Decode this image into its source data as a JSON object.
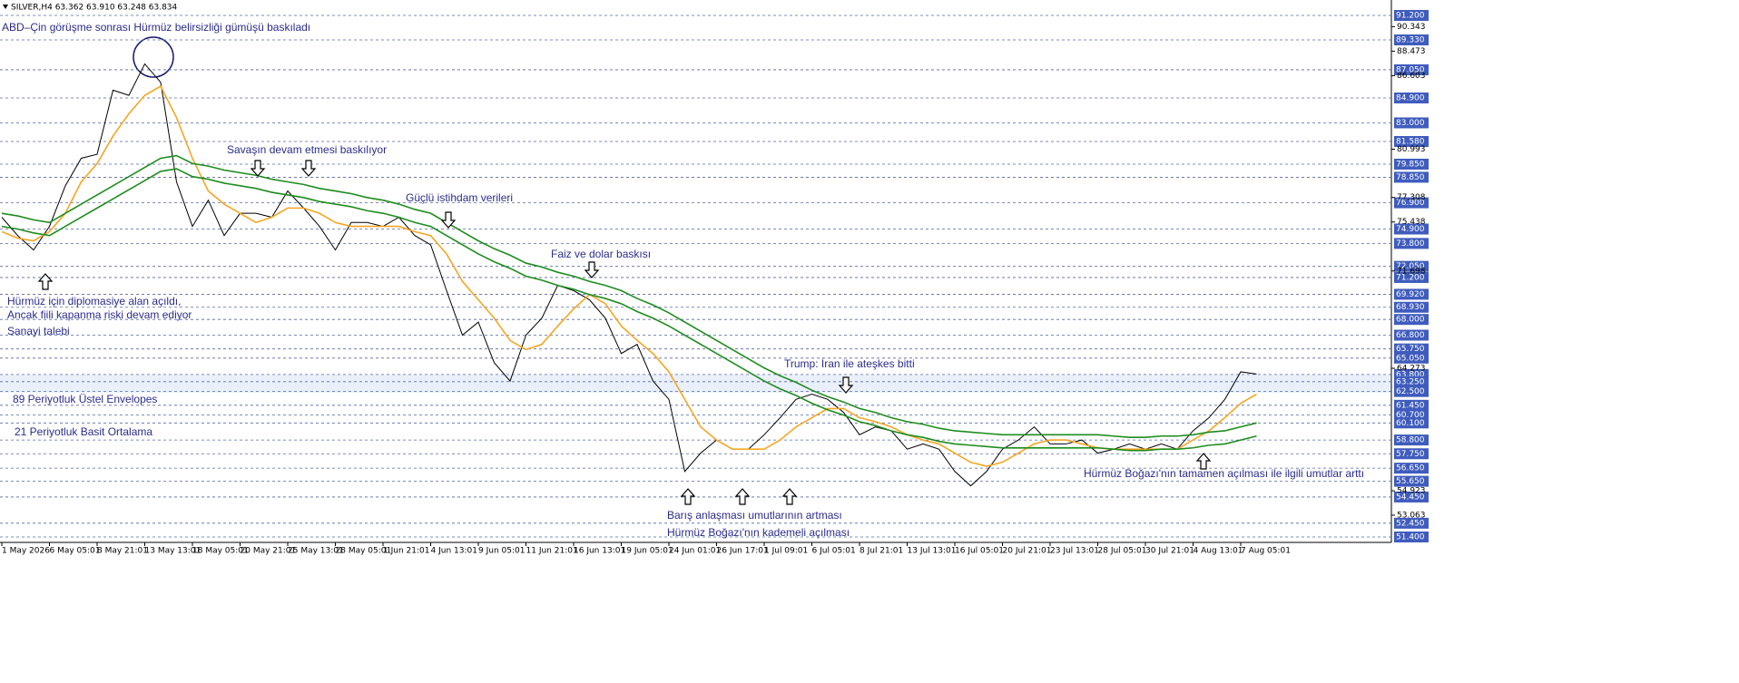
{
  "header": "SILVER,H4  63.362 63.910 63.248 63.834",
  "chart_data": {
    "type": "line",
    "categories": [
      "1 May 2026",
      null,
      null,
      "6 May 05:01",
      null,
      null,
      "8 May 21:01",
      null,
      null,
      "13 May 13:01",
      null,
      null,
      "18 May 05:01",
      null,
      null,
      "20 May 21:01",
      null,
      null,
      "25 May 13:01",
      null,
      null,
      "28 May 05:01",
      null,
      null,
      "1 Jun 21:01",
      null,
      null,
      "4 Jun 13:01",
      null,
      null,
      "9 Jun 05:01",
      null,
      null,
      "11 Jun 21:01",
      null,
      null,
      "16 Jun 13:01",
      null,
      null,
      "19 Jun 05:01",
      null,
      null,
      "24 Jun 01:01",
      null,
      null,
      "26 Jun 17:01",
      null,
      null,
      "1 Jul 09:01",
      null,
      null,
      "6 Jul 05:01",
      null,
      null,
      "8 Jul 21:01",
      null,
      null,
      "13 Jul 13:01",
      null,
      null,
      "16 Jul 05:01",
      null,
      null,
      "20 Jul 21:01",
      null,
      null,
      "23 Jul 13:01",
      null,
      null,
      "28 Jul 05:01",
      null,
      null,
      "30 Jul 21:01",
      null,
      null,
      "4 Aug 13:01",
      null,
      null,
      "7 Aug 05:01",
      null
    ],
    "series": [
      {
        "color": "#000000",
        "values": [
          75.8,
          74.4,
          73.3,
          75.1,
          78.2,
          80.3,
          80.6,
          85.5,
          85.1,
          87.5,
          86.1,
          78.5,
          75.1,
          77.1,
          74.4,
          76.1,
          76.1,
          75.8,
          77.8,
          76.5,
          75.1,
          73.3,
          75.4,
          75.4,
          75.1,
          75.8,
          74.4,
          73.7,
          70.2,
          66.8,
          67.8,
          64.7,
          63.3,
          66.8,
          68.1,
          70.6,
          70.2,
          69.5,
          68.1,
          65.4,
          66.1,
          63.3,
          61.9,
          56.4,
          57.8,
          58.8,
          58.1,
          58.1,
          59.2,
          60.5,
          61.9,
          62.3,
          61.9,
          60.9,
          59.2,
          59.8,
          59.5,
          58.1,
          58.5,
          58.1,
          56.4,
          55.3,
          56.4,
          58.1,
          58.8,
          59.8,
          58.5,
          58.5,
          58.8,
          57.8,
          58.1,
          58.5,
          58.1,
          58.5,
          58.1,
          59.5,
          60.5,
          61.9,
          64.0,
          63.834
        ]
      },
      {
        "color": "#f5a623",
        "values": [
          74.7,
          74.2,
          74.0,
          74.7,
          76.1,
          78.5,
          79.9,
          82.0,
          83.7,
          85.1,
          85.8,
          83.4,
          80.3,
          77.8,
          76.8,
          76.1,
          75.4,
          75.8,
          76.5,
          76.5,
          76.1,
          75.4,
          75.1,
          75.1,
          75.1,
          75.1,
          74.7,
          74.4,
          73.0,
          70.9,
          69.5,
          68.1,
          66.4,
          65.7,
          66.1,
          67.5,
          68.8,
          69.9,
          69.2,
          67.5,
          66.4,
          65.4,
          64.0,
          61.9,
          59.8,
          58.8,
          58.1,
          58.1,
          58.1,
          58.8,
          59.8,
          60.5,
          61.2,
          61.2,
          60.5,
          60.2,
          59.8,
          59.2,
          58.8,
          58.5,
          57.8,
          57.1,
          56.8,
          57.1,
          57.8,
          58.5,
          58.8,
          58.8,
          58.5,
          58.2,
          58.1,
          58.1,
          58.1,
          58.1,
          58.1,
          58.8,
          59.5,
          60.5,
          61.6,
          62.3
        ]
      },
      {
        "color": "#1e8c1e",
        "values": [
          76.1,
          75.9,
          75.6,
          75.4,
          76.1,
          76.8,
          77.5,
          78.2,
          78.9,
          79.6,
          80.3,
          80.5,
          79.9,
          79.7,
          79.4,
          79.2,
          79.0,
          78.7,
          78.5,
          78.3,
          78.0,
          77.8,
          77.6,
          77.3,
          77.1,
          76.8,
          76.4,
          76.1,
          75.4,
          74.7,
          74.0,
          73.4,
          72.9,
          72.3,
          72.0,
          71.6,
          71.3,
          70.9,
          70.6,
          70.2,
          69.6,
          69.1,
          68.5,
          67.8,
          67.1,
          66.4,
          65.7,
          65.0,
          64.3,
          63.7,
          63.2,
          62.6,
          62.1,
          61.7,
          61.2,
          60.9,
          60.5,
          60.2,
          60.0,
          59.7,
          59.5,
          59.4,
          59.3,
          59.2,
          59.2,
          59.2,
          59.2,
          59.2,
          59.2,
          59.2,
          59.1,
          59.0,
          59.0,
          59.1,
          59.1,
          59.2,
          59.4,
          59.5,
          59.8,
          60.1
        ]
      },
      {
        "color": "#1e8c1e",
        "values": [
          75.1,
          74.9,
          74.6,
          74.4,
          75.1,
          75.8,
          76.5,
          77.2,
          77.9,
          78.6,
          79.3,
          79.5,
          78.9,
          78.7,
          78.4,
          78.2,
          78.0,
          77.7,
          77.5,
          77.3,
          77.0,
          76.8,
          76.6,
          76.3,
          76.1,
          75.8,
          75.4,
          75.1,
          74.4,
          73.7,
          73.0,
          72.4,
          71.9,
          71.3,
          71.0,
          70.6,
          70.3,
          69.9,
          69.6,
          69.2,
          68.6,
          68.1,
          67.5,
          66.8,
          66.1,
          65.4,
          64.7,
          64.0,
          63.3,
          62.7,
          62.2,
          61.6,
          61.1,
          60.7,
          60.2,
          59.9,
          59.5,
          59.2,
          59.0,
          58.7,
          58.5,
          58.4,
          58.3,
          58.2,
          58.2,
          58.2,
          58.2,
          58.2,
          58.2,
          58.2,
          58.1,
          58.0,
          58.0,
          58.1,
          58.1,
          58.2,
          58.4,
          58.5,
          58.8,
          59.1
        ]
      }
    ],
    "ylim": [
      50.985,
      92.377
    ],
    "yticks": [
      90.343,
      88.473,
      86.603,
      80.993,
      77.308,
      75.438,
      71.698,
      64.273,
      54.923,
      53.063
    ],
    "levels": [
      {
        "value": 91.2,
        "label": "91.200"
      },
      {
        "value": 89.33,
        "label": "89.330"
      },
      {
        "value": 87.05,
        "label": "87.050"
      },
      {
        "value": 84.9,
        "label": "84.900"
      },
      {
        "value": 83.0,
        "label": "83.000"
      },
      {
        "value": 81.58,
        "label": "81.580"
      },
      {
        "value": 79.85,
        "label": "79.850"
      },
      {
        "value": 78.85,
        "label": "78.850"
      },
      {
        "value": 76.9,
        "label": "76.900"
      },
      {
        "value": 74.9,
        "label": "74.900"
      },
      {
        "value": 73.8,
        "label": "73.800"
      },
      {
        "value": 72.05,
        "label": "72.050"
      },
      {
        "value": 71.2,
        "label": "71.200"
      },
      {
        "value": 69.92,
        "label": "69.920"
      },
      {
        "value": 68.93,
        "label": "68.930"
      },
      {
        "value": 68.0,
        "label": "68.000"
      },
      {
        "value": 66.8,
        "label": "66.800"
      },
      {
        "value": 65.75,
        "label": "65.750"
      },
      {
        "value": 65.05,
        "label": "65.050"
      },
      {
        "value": 63.8,
        "label": "63.800"
      },
      {
        "value": 63.25,
        "label": "63.250"
      },
      {
        "value": 62.5,
        "label": "62.500"
      },
      {
        "value": 61.45,
        "label": "61.450"
      },
      {
        "value": 60.7,
        "label": "60.700"
      },
      {
        "value": 60.1,
        "label": "60.100"
      },
      {
        "value": 58.8,
        "label": "58.800"
      },
      {
        "value": 57.75,
        "label": "57.750"
      },
      {
        "value": 56.65,
        "label": "56.650"
      },
      {
        "value": 55.65,
        "label": "55.650"
      },
      {
        "value": 54.45,
        "label": "54.450"
      },
      {
        "value": 52.45,
        "label": "52.450"
      },
      {
        "value": 51.4,
        "label": "51.400"
      }
    ],
    "annotations": [
      "ABD–Çin görüşme sonrası Hürmüz belirsizliği gümüşü baskıladı",
      "Savaşın devam etmesi baskılıyor",
      "Güçlü istihdam verileri",
      "Faiz ve dolar baskısı",
      "Hürmüz için diplomasiye alan açıldı,",
      "Ancak fiili kapanma riski devam ediyor",
      "Sanayi talebi",
      "Trump: İran ile ateşkes bitti",
      "89 Periyotluk Üstel Envelopes",
      "21 Periyotluk Basit Ortalama",
      "Hürmüz Boğazı'nın tamamen açılması ile ilgili umutlar arttı",
      "Barış anlaşması umutlarının artması",
      "Hürmüz Boğazı'nın kademeli açılması"
    ]
  }
}
